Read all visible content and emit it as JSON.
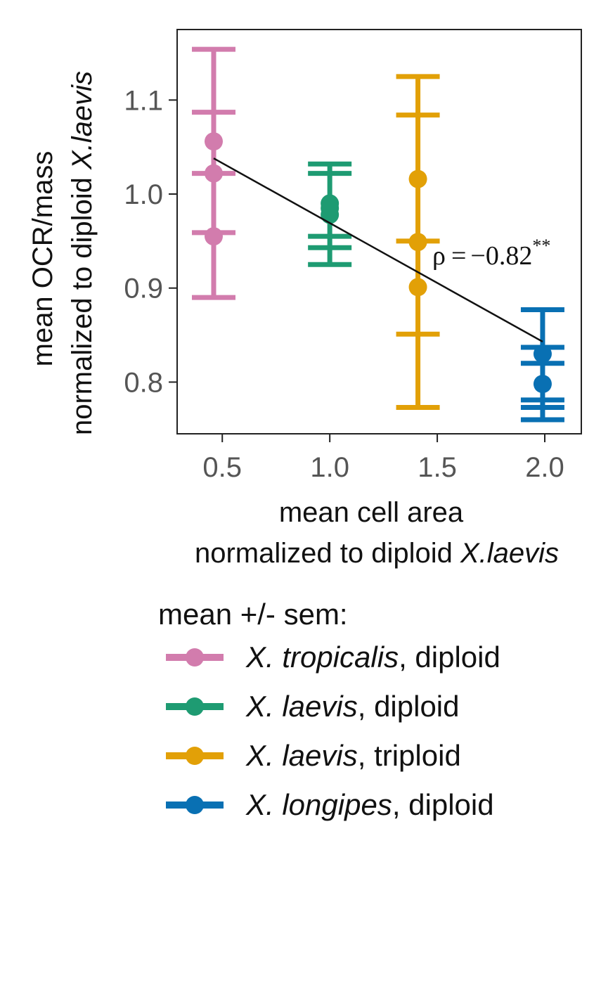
{
  "chart_data": {
    "type": "scatter",
    "xlabel_line1": "mean cell area",
    "xlabel_line2_prefix": "normalized to diploid ",
    "xlabel_line2_italic": "X.laevis",
    "ylabel_line1": "mean OCR/mass",
    "ylabel_line2_prefix": "normalized to diploid ",
    "ylabel_line2_italic": "X.laevis",
    "xlim": [
      0.29,
      2.17
    ],
    "ylim": [
      0.745,
      1.175
    ],
    "xticks": [
      0.5,
      1.0,
      1.5,
      2.0
    ],
    "xtick_labels": [
      "0.5",
      "1.0",
      "1.5",
      "2.0"
    ],
    "yticks": [
      0.8,
      0.9,
      1.0,
      1.1
    ],
    "ytick_labels": [
      "0.8",
      "0.9",
      "1.0",
      "1.1"
    ],
    "grid": false,
    "annotation": {
      "rho_symbol": "ρ",
      "equals": "=",
      "value": "−0.82",
      "significance": "**"
    },
    "fit_line": {
      "x": [
        0.46,
        1.99
      ],
      "y": [
        1.038,
        0.843
      ],
      "color": "#111111"
    },
    "series": [
      {
        "name_italic": "X. tropicalis",
        "name_rest": ", diploid",
        "color": "#D27CAD",
        "points": [
          {
            "x": 0.46,
            "y": 1.056,
            "ylow": 1.022,
            "yhigh": 1.087
          },
          {
            "x": 0.46,
            "y": 1.022,
            "ylow": 0.89,
            "yhigh": 1.154
          },
          {
            "x": 0.46,
            "y": 0.955,
            "ylow": 0.955,
            "yhigh": 0.955
          }
        ],
        "caps": [
          1.154,
          1.087,
          1.022,
          0.959,
          0.89
        ]
      },
      {
        "name_italic": "X. laevis",
        "name_rest": ", diploid",
        "color": "#1E9B72",
        "points": [
          {
            "x": 1.0,
            "y": 0.99,
            "ylow": 0.955,
            "yhigh": 1.025
          },
          {
            "x": 1.0,
            "y": 0.985,
            "ylow": 0.945,
            "yhigh": 1.03
          },
          {
            "x": 1.0,
            "y": 0.978,
            "ylow": 0.925,
            "yhigh": 1.032
          }
        ],
        "caps": [
          1.032,
          1.022,
          0.955,
          0.943,
          0.925
        ]
      },
      {
        "name_italic": "X. laevis",
        "name_rest": ", triploid",
        "color": "#E2A007",
        "points": [
          {
            "x": 1.41,
            "y": 1.016,
            "ylow": 0.95,
            "yhigh": 1.084
          },
          {
            "x": 1.41,
            "y": 0.949,
            "ylow": 0.773,
            "yhigh": 1.125
          },
          {
            "x": 1.41,
            "y": 0.901,
            "ylow": 0.851,
            "yhigh": 0.949
          }
        ],
        "caps": [
          1.125,
          1.084,
          0.95,
          0.851,
          0.773
        ]
      },
      {
        "name_italic": "X. longipes",
        "name_rest": ", diploid",
        "color": "#0970B3",
        "points": [
          {
            "x": 1.99,
            "y": 0.83,
            "ylow": 0.82,
            "yhigh": 0.877
          },
          {
            "x": 1.99,
            "y": 0.798,
            "ylow": 0.76,
            "yhigh": 0.837
          }
        ],
        "caps": [
          0.877,
          0.837,
          0.82,
          0.781,
          0.773,
          0.76
        ]
      }
    ],
    "legend_title": "mean +/- sem:"
  }
}
